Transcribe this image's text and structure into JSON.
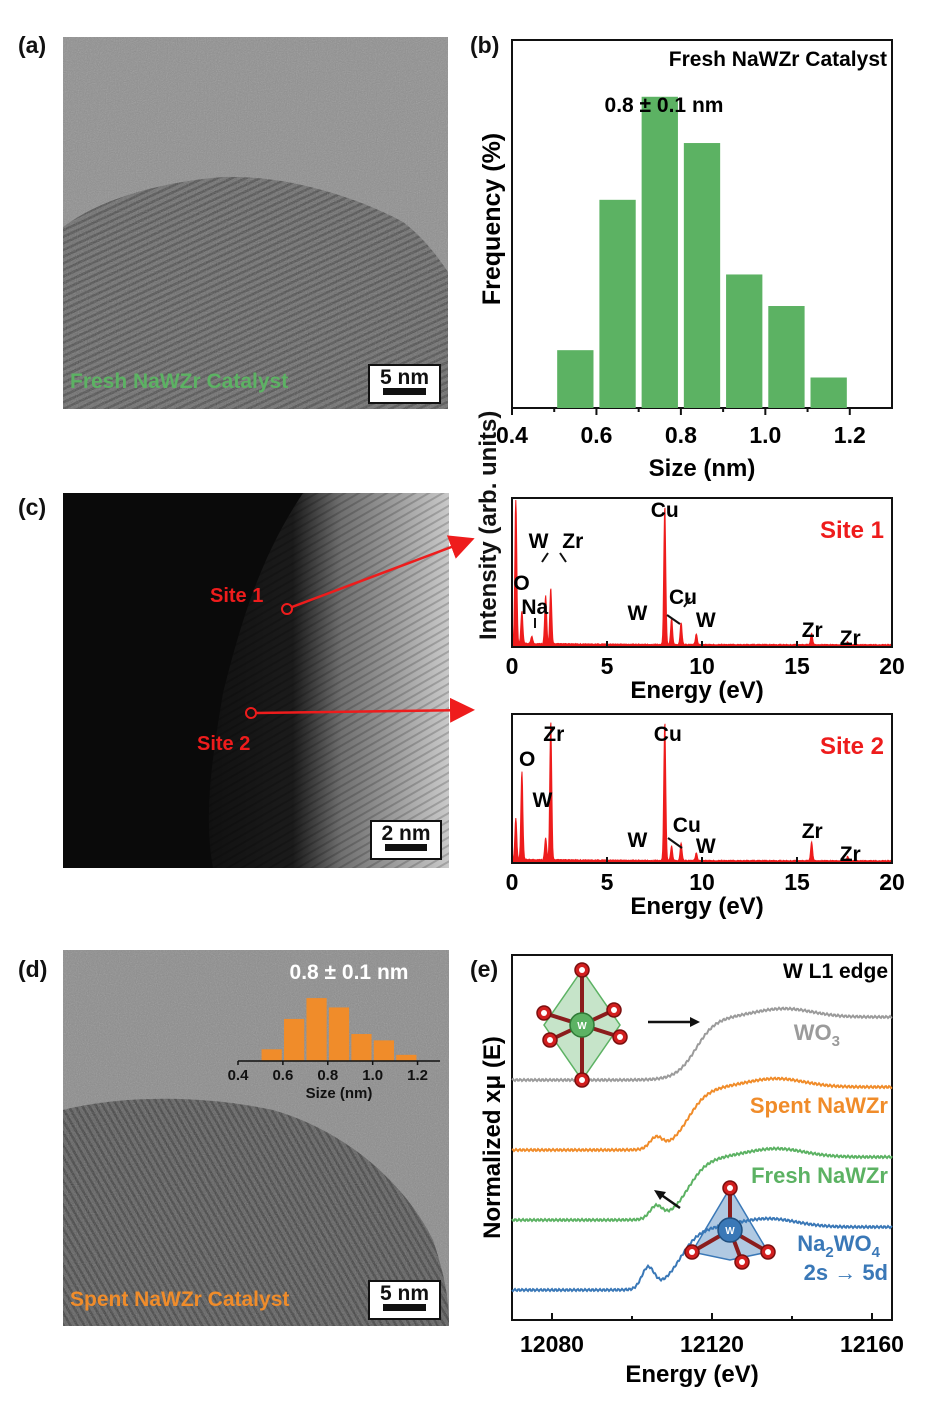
{
  "panels": {
    "a": {
      "label": "(a)",
      "caption": "Fresh NaWZr Catalyst",
      "scale": "5 nm"
    },
    "b": {
      "label": "(b)"
    },
    "c": {
      "label": "(c)",
      "site1": "Site 1",
      "site2": "Site 2",
      "scale": "2 nm",
      "shared_ylabel": "Intensity (arb. units)"
    },
    "d": {
      "label": "(d)",
      "caption": "Spent NaWZr Catalyst",
      "scale": "5 nm"
    },
    "e": {
      "label": "(e)"
    }
  },
  "colors": {
    "green": "#5cb263",
    "orange": "#f08c2a",
    "red": "#ee1c1c",
    "blue": "#3a78b7",
    "gray": "#9b9b9b"
  },
  "chart_data": [
    {
      "id": "b",
      "type": "bar",
      "title": "Fresh NaWZr Catalyst",
      "annotation": "0.8 ± 0.1 nm",
      "xlabel": "Size (nm)",
      "ylabel": "Frequency (%)",
      "xlim": [
        0.4,
        1.3
      ],
      "xticks": [
        "0.4",
        "0.6",
        "0.8",
        "1.0",
        "1.2"
      ],
      "x": [
        0.55,
        0.65,
        0.75,
        0.85,
        0.95,
        1.05,
        1.15
      ],
      "values": [
        5.5,
        19.8,
        29.6,
        25.2,
        12.7,
        9.7,
        2.9
      ],
      "ylim": [
        0,
        35
      ],
      "color": "#5cb263"
    },
    {
      "id": "d-inset",
      "type": "bar",
      "annotation": "0.8 ± 0.1 nm",
      "xlabel": "Size (nm)",
      "xlim": [
        0.4,
        1.3
      ],
      "xticks": [
        "0.4",
        "0.6",
        "0.8",
        "1.0",
        "1.2"
      ],
      "x": [
        0.55,
        0.65,
        0.75,
        0.85,
        0.95,
        1.05,
        1.15
      ],
      "values": [
        5.5,
        19.8,
        29.6,
        25.2,
        12.7,
        9.7,
        2.9
      ],
      "ylim": [
        0,
        32
      ],
      "color": "#f08c2a"
    },
    {
      "id": "c-site1",
      "type": "line",
      "title": "Site 1",
      "xlabel": "Energy (eV)",
      "xlim": [
        0,
        20
      ],
      "xticks": [
        "0",
        "5",
        "10",
        "15",
        "20"
      ],
      "peaks": [
        {
          "e": 0.2,
          "h": 1.0
        },
        {
          "e": 0.52,
          "h": 0.22
        },
        {
          "e": 1.04,
          "h": 0.05
        },
        {
          "e": 1.77,
          "h": 0.33
        },
        {
          "e": 2.04,
          "h": 0.38
        },
        {
          "e": 8.04,
          "h": 0.95
        },
        {
          "e": 8.4,
          "h": 0.18
        },
        {
          "e": 8.9,
          "h": 0.15
        },
        {
          "e": 9.7,
          "h": 0.07
        },
        {
          "e": 15.77,
          "h": 0.08
        },
        {
          "e": 17.67,
          "h": 0.02
        }
      ],
      "peak_labels": [
        {
          "text": "Cu",
          "x": 8.04
        },
        {
          "text": "W",
          "x": 1.4
        },
        {
          "text": "Zr",
          "x": 3.2
        },
        {
          "text": "O",
          "x": 0.5
        },
        {
          "text": "Na",
          "x": 1.2
        },
        {
          "text": "W",
          "x": 6.6
        },
        {
          "text": "Cu",
          "x": 9.0
        },
        {
          "text": "W",
          "x": 10.2
        },
        {
          "text": "Zr",
          "x": 15.8
        },
        {
          "text": "Zr",
          "x": 17.8
        }
      ]
    },
    {
      "id": "c-site2",
      "type": "line",
      "title": "Site 2",
      "xlabel": "Energy (eV)",
      "xlim": [
        0,
        20
      ],
      "xticks": [
        "0",
        "5",
        "10",
        "15",
        "20"
      ],
      "peaks": [
        {
          "e": 0.2,
          "h": 0.28
        },
        {
          "e": 0.52,
          "h": 0.6
        },
        {
          "e": 1.77,
          "h": 0.15
        },
        {
          "e": 2.04,
          "h": 0.95
        },
        {
          "e": 8.04,
          "h": 0.95
        },
        {
          "e": 8.4,
          "h": 0.1
        },
        {
          "e": 8.9,
          "h": 0.12
        },
        {
          "e": 9.7,
          "h": 0.05
        },
        {
          "e": 15.77,
          "h": 0.13
        },
        {
          "e": 17.67,
          "h": 0.03
        }
      ],
      "peak_labels": [
        {
          "text": "Zr",
          "x": 2.2
        },
        {
          "text": "Cu",
          "x": 8.2
        },
        {
          "text": "O",
          "x": 0.8
        },
        {
          "text": "W",
          "x": 1.6
        },
        {
          "text": "W",
          "x": 6.6
        },
        {
          "text": "Cu",
          "x": 9.2
        },
        {
          "text": "W",
          "x": 10.2
        },
        {
          "text": "Zr",
          "x": 15.8
        },
        {
          "text": "Zr",
          "x": 17.8
        }
      ]
    },
    {
      "id": "e",
      "type": "line",
      "title": "W L1 edge",
      "xlabel": "Energy (eV)",
      "ylabel": "Normalized xμ (E)",
      "xlim": [
        12070,
        12165
      ],
      "xticks": [
        "12080",
        "12120",
        "12160"
      ],
      "series": [
        {
          "name": "WO3",
          "color": "#9b9b9b",
          "offset": 3.0,
          "pre_edge": 0.0,
          "white_line": 0.0,
          "edge_center": 12116
        },
        {
          "name": "Spent NaWZr",
          "color": "#f08c2a",
          "offset": 2.0,
          "pre_edge": 0.45,
          "white_line": 0.0,
          "edge_center": 12114
        },
        {
          "name": "Fresh NaWZr",
          "color": "#5cb263",
          "offset": 1.0,
          "pre_edge": 0.5,
          "white_line": 0.0,
          "edge_center": 12114
        },
        {
          "name": "Na2WO4",
          "color": "#3a78b7",
          "offset": 0.0,
          "pre_edge": 0.85,
          "white_line": 0.0,
          "edge_center": 12112
        }
      ],
      "annotation": "2s → 5d"
    }
  ]
}
